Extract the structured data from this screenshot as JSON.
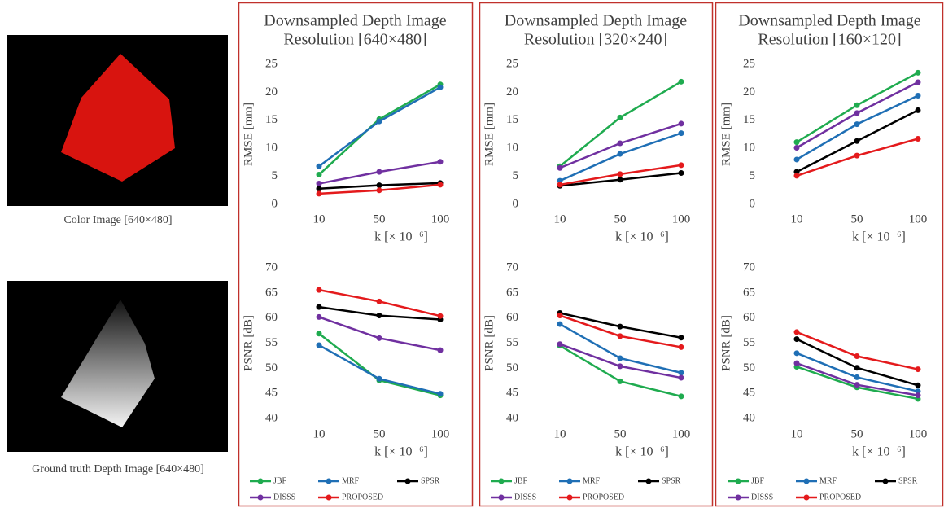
{
  "images": [
    {
      "caption": "Color Image [640×480]"
    },
    {
      "caption": "Ground truth Depth Image [640×480]"
    }
  ],
  "chart_data": [
    {
      "type": "line",
      "title": [
        "Downsampled Depth Image",
        "Resolution [640×480]"
      ],
      "y_label": "RMSE [mm]",
      "x_label": "k [× 10⁻⁶]",
      "categories": [
        "10",
        "50",
        "100"
      ],
      "ylim": [
        0,
        25
      ],
      "yticks": [
        0,
        5,
        10,
        15,
        20,
        25
      ],
      "series": [
        {
          "color": "#1fab4f",
          "values": [
            5.3,
            15.2,
            21.4
          ]
        },
        {
          "color": "#1f6fb5",
          "values": [
            6.8,
            14.8,
            20.9
          ]
        },
        {
          "color": "#000000",
          "values": [
            2.8,
            3.4,
            3.8
          ]
        },
        {
          "color": "#7030a0",
          "values": [
            3.7,
            5.8,
            7.6
          ]
        },
        {
          "color": "#e41a1c",
          "values": [
            1.9,
            2.5,
            3.5
          ]
        }
      ]
    },
    {
      "type": "line",
      "y_label": "PSNR [dB]",
      "x_label": "k [× 10⁻⁶]",
      "categories": [
        "10",
        "50",
        "100"
      ],
      "ylim": [
        40,
        70
      ],
      "yticks": [
        40,
        45,
        50,
        55,
        60,
        65,
        70
      ],
      "series": [
        {
          "name": "JBF",
          "color": "#1fab4f",
          "values": [
            56.9,
            47.6,
            44.6
          ]
        },
        {
          "name": "MRF",
          "color": "#1f6fb5",
          "values": [
            54.6,
            47.9,
            44.9
          ]
        },
        {
          "name": "SPSR",
          "color": "#000000",
          "values": [
            62.2,
            60.5,
            59.7
          ]
        },
        {
          "name": "DISSS",
          "color": "#7030a0",
          "values": [
            60.2,
            56.0,
            53.6
          ]
        },
        {
          "name": "PROPOSED",
          "color": "#e41a1c",
          "values": [
            65.6,
            63.3,
            60.4
          ]
        }
      ]
    },
    {
      "type": "line",
      "title": [
        "Downsampled Depth Image",
        "Resolution [320×240]"
      ],
      "y_label": "RMSE [mm]",
      "x_label": "k [× 10⁻⁶]",
      "categories": [
        "10",
        "50",
        "100"
      ],
      "ylim": [
        0,
        25
      ],
      "yticks": [
        0,
        5,
        10,
        15,
        20,
        25
      ],
      "series": [
        {
          "color": "#1fab4f",
          "values": [
            6.8,
            15.5,
            21.9
          ]
        },
        {
          "color": "#1f6fb5",
          "values": [
            4.2,
            9.0,
            12.7
          ]
        },
        {
          "color": "#000000",
          "values": [
            3.3,
            4.4,
            5.6
          ]
        },
        {
          "color": "#7030a0",
          "values": [
            6.5,
            10.9,
            14.4
          ]
        },
        {
          "color": "#e41a1c",
          "values": [
            3.5,
            5.4,
            7.0
          ]
        }
      ]
    },
    {
      "type": "line",
      "y_label": "PSNR [dB]",
      "x_label": "k [× 10⁻⁶]",
      "categories": [
        "10",
        "50",
        "100"
      ],
      "ylim": [
        40,
        70
      ],
      "yticks": [
        40,
        45,
        50,
        55,
        60,
        65,
        70
      ],
      "series": [
        {
          "name": "JBF",
          "color": "#1fab4f",
          "values": [
            54.5,
            47.4,
            44.4
          ]
        },
        {
          "name": "MRF",
          "color": "#1f6fb5",
          "values": [
            58.8,
            52.0,
            49.1
          ]
        },
        {
          "name": "SPSR",
          "color": "#000000",
          "values": [
            61.0,
            58.3,
            56.1
          ]
        },
        {
          "name": "DISSS",
          "color": "#7030a0",
          "values": [
            54.8,
            50.4,
            48.1
          ]
        },
        {
          "name": "PROPOSED",
          "color": "#e41a1c",
          "values": [
            60.5,
            56.4,
            54.2
          ]
        }
      ]
    },
    {
      "type": "line",
      "title": [
        "Downsampled Depth Image",
        "Resolution [160×120]"
      ],
      "y_label": "RMSE [mm]",
      "x_label": "k [× 10⁻⁶]",
      "categories": [
        "10",
        "50",
        "100"
      ],
      "ylim": [
        0,
        25
      ],
      "yticks": [
        0,
        5,
        10,
        15,
        20,
        25
      ],
      "series": [
        {
          "color": "#1fab4f",
          "values": [
            11.1,
            17.7,
            23.5
          ]
        },
        {
          "color": "#1f6fb5",
          "values": [
            8.0,
            14.3,
            19.4
          ]
        },
        {
          "color": "#000000",
          "values": [
            5.8,
            11.3,
            16.8
          ]
        },
        {
          "color": "#7030a0",
          "values": [
            10.1,
            16.3,
            21.8
          ]
        },
        {
          "color": "#e41a1c",
          "values": [
            5.1,
            8.7,
            11.7
          ]
        }
      ]
    },
    {
      "type": "line",
      "y_label": "PSNR [dB]",
      "x_label": "k [× 10⁻⁶]",
      "categories": [
        "10",
        "50",
        "100"
      ],
      "ylim": [
        40,
        70
      ],
      "yticks": [
        40,
        45,
        50,
        55,
        60,
        65,
        70
      ],
      "series": [
        {
          "name": "JBF",
          "color": "#1fab4f",
          "values": [
            50.3,
            46.2,
            43.9
          ]
        },
        {
          "name": "MRF",
          "color": "#1f6fb5",
          "values": [
            53.0,
            48.2,
            45.4
          ]
        },
        {
          "name": "SPSR",
          "color": "#000000",
          "values": [
            55.8,
            50.1,
            46.6
          ]
        },
        {
          "name": "DISSS",
          "color": "#7030a0",
          "values": [
            51.0,
            46.7,
            44.6
          ]
        },
        {
          "name": "PROPOSED",
          "color": "#e41a1c",
          "values": [
            57.2,
            52.4,
            49.8
          ]
        }
      ]
    }
  ]
}
